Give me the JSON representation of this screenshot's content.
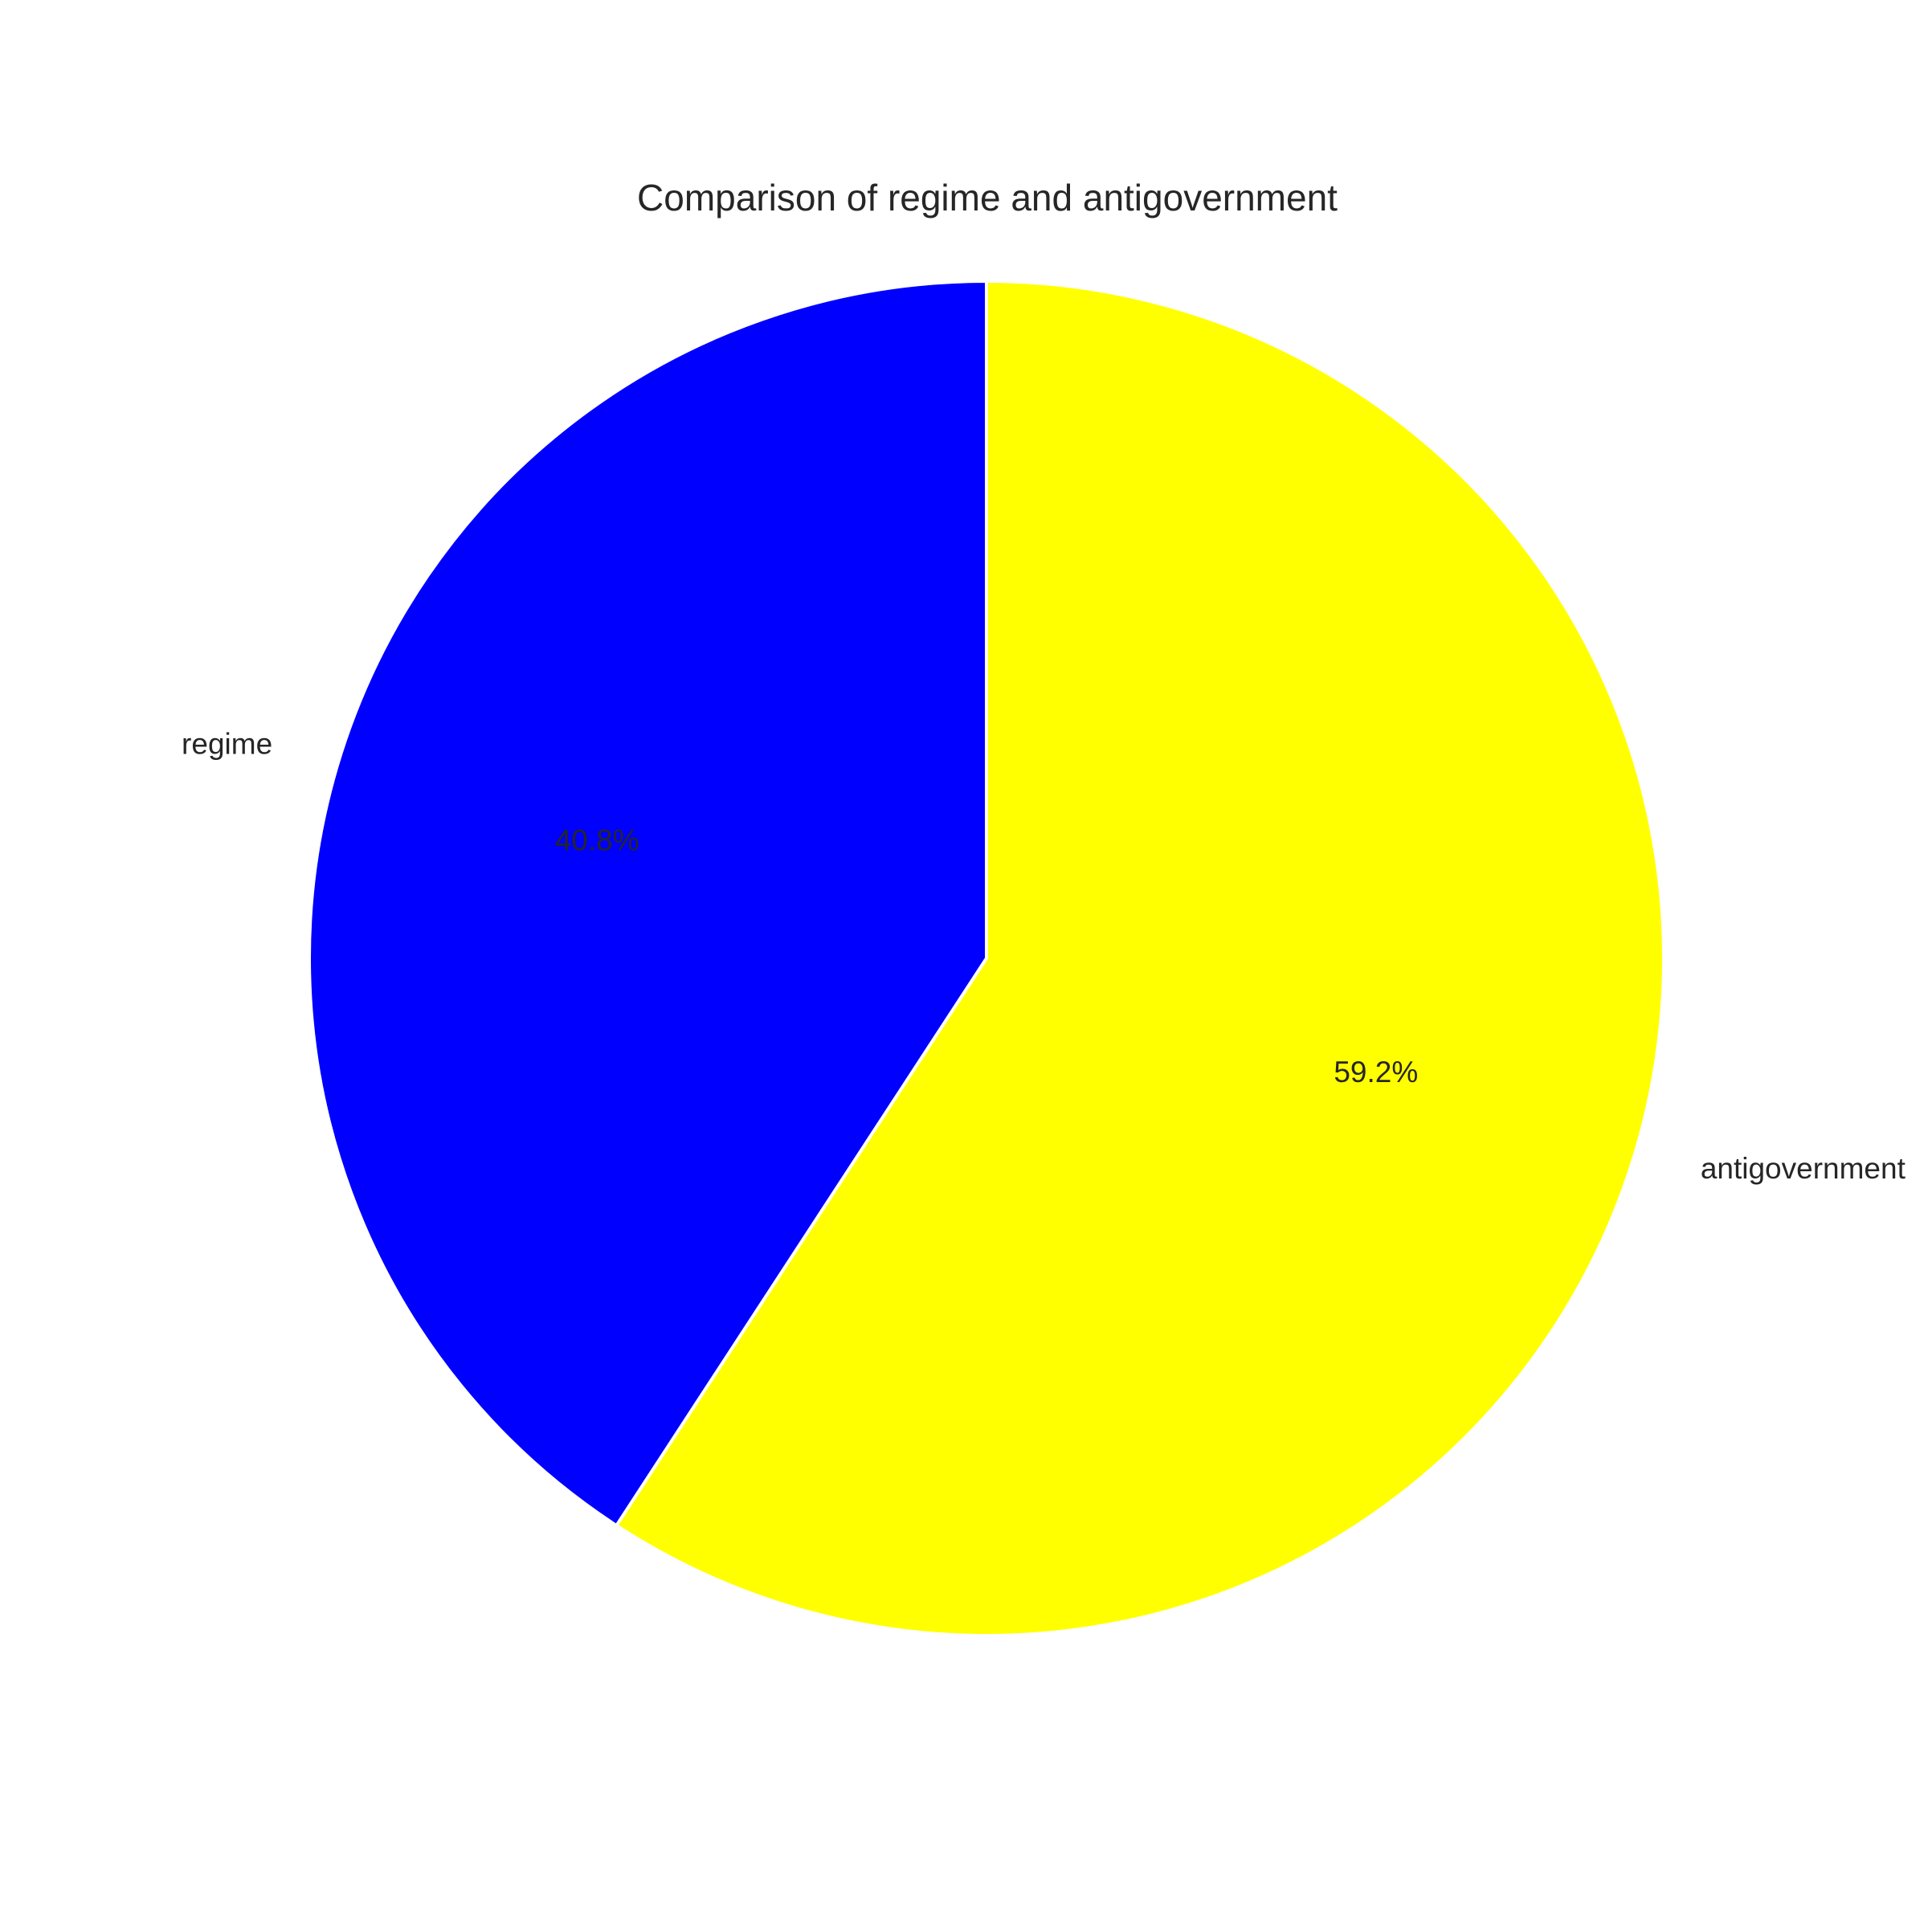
{
  "chart_data": {
    "type": "pie",
    "title": "Comparison of regime and antigovernment",
    "start_angle": 90,
    "direction": "counterclockwise",
    "slices": [
      {
        "label": "regime",
        "value": 40.8,
        "pct_label": "40.8%",
        "color": "#0000ff"
      },
      {
        "label": "antigovernment",
        "value": 59.2,
        "pct_label": "59.2%",
        "color": "#ffff00"
      }
    ],
    "edge_color": "#ffffff",
    "legend": "none"
  }
}
